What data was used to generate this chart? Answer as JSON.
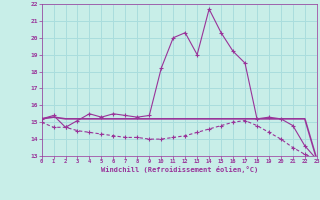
{
  "bg_color": "#c8eee8",
  "grid_color": "#aadddd",
  "line_color": "#993399",
  "hours": [
    0,
    1,
    2,
    3,
    4,
    5,
    6,
    7,
    8,
    9,
    10,
    11,
    12,
    13,
    14,
    15,
    16,
    17,
    18,
    19,
    20,
    21,
    22,
    23
  ],
  "temp": [
    15.2,
    15.4,
    14.7,
    15.1,
    15.5,
    15.3,
    15.5,
    15.4,
    15.3,
    15.4,
    18.2,
    20.0,
    20.3,
    19.0,
    21.7,
    20.3,
    19.2,
    18.5,
    15.2,
    15.3,
    15.2,
    14.8,
    13.6,
    12.8
  ],
  "flat": [
    15.2,
    15.3,
    15.2,
    15.2,
    15.2,
    15.2,
    15.2,
    15.2,
    15.2,
    15.2,
    15.2,
    15.2,
    15.2,
    15.2,
    15.2,
    15.2,
    15.2,
    15.2,
    15.2,
    15.2,
    15.2,
    15.2,
    15.2,
    12.8
  ],
  "windchill": [
    15.0,
    14.7,
    14.7,
    14.5,
    14.4,
    14.3,
    14.2,
    14.1,
    14.1,
    14.0,
    14.0,
    14.1,
    14.2,
    14.4,
    14.6,
    14.8,
    15.0,
    15.1,
    14.8,
    14.4,
    14.0,
    13.5,
    13.1,
    12.8
  ],
  "ylim": [
    13,
    22
  ],
  "xlim": [
    0,
    23
  ],
  "yticks": [
    13,
    14,
    15,
    16,
    17,
    18,
    19,
    20,
    21,
    22
  ],
  "xticks": [
    0,
    1,
    2,
    3,
    4,
    5,
    6,
    7,
    8,
    9,
    10,
    11,
    12,
    13,
    14,
    15,
    16,
    17,
    18,
    19,
    20,
    21,
    22,
    23
  ],
  "xlabel": "Windchill (Refroidissement éolien,°C)"
}
